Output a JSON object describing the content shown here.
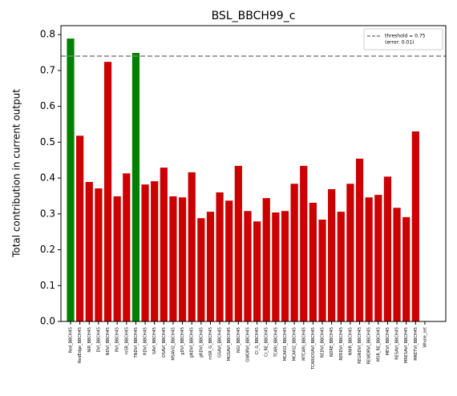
{
  "chart_data": {
    "type": "bar",
    "title": "BSL_BBCH99_c",
    "ylabel": "Total contribution in current output",
    "categories": [
      "Red_BBCH45",
      "RedEdge_BBCH45",
      "NIR_BBCH45",
      "DVI_BBCH45",
      "NDVI_BBCH45",
      "RVI_BBCH45",
      "mSR_BBCH45",
      "TNDVI_BBCH45",
      "RDVI_BBCH45",
      "SAVI_BBCH45",
      "OSAVI_BBCH45",
      "MSAVI2_BBCH45",
      "gDVI_BBCH45",
      "gNDVI_BBCH45",
      "gRDVI_BBCH45",
      "mSR_G_BBCH45",
      "GSAVI_BBCH45",
      "MGSAVI_BBCH45",
      "NGI_BBCH45",
      "GWDRVI_BBCH45",
      "CI_G_BBCH45",
      "CI_RE_BBCH45",
      "TCARI_BBCH45",
      "MCARI1_BBCH45",
      "MCARI2_BBCH45",
      "MTCARI_BBCH45",
      "TCARIOSAVI_BBCH45",
      "REDVI_BBCH45",
      "NDRE_BBCH45",
      "RERDVI_BBCH45",
      "NNIR_BBCH45",
      "REGNDVI_BBCH45",
      "REWDRVI_BBCH45",
      "MSR_RE_BBCH45",
      "MEVI_BBCH45",
      "RESAVI_BBCH45",
      "MRESAVI_BBCH45",
      "MRETVI_BBCH45",
      "Whole_set"
    ],
    "values": [
      0.789,
      0.518,
      0.389,
      0.371,
      0.724,
      0.349,
      0.413,
      0.749,
      0.382,
      0.391,
      0.429,
      0.349,
      0.346,
      0.416,
      0.288,
      0.306,
      0.36,
      0.337,
      0.434,
      0.308,
      0.279,
      0.344,
      0.304,
      0.308,
      0.384,
      0.434,
      0.331,
      0.284,
      0.369,
      0.306,
      0.384,
      0.454,
      0.346,
      0.353,
      0.404,
      0.317,
      0.291,
      0.53,
      null
    ],
    "colors": [
      "#008000",
      "#cc0000",
      "#cc0000",
      "#cc0000",
      "#cc0000",
      "#cc0000",
      "#cc0000",
      "#008000",
      "#cc0000",
      "#cc0000",
      "#cc0000",
      "#cc0000",
      "#cc0000",
      "#cc0000",
      "#cc0000",
      "#cc0000",
      "#cc0000",
      "#cc0000",
      "#cc0000",
      "#cc0000",
      "#cc0000",
      "#cc0000",
      "#cc0000",
      "#cc0000",
      "#cc0000",
      "#cc0000",
      "#cc0000",
      "#cc0000",
      "#cc0000",
      "#cc0000",
      "#cc0000",
      "#cc0000",
      "#cc0000",
      "#cc0000",
      "#cc0000",
      "#cc0000",
      "#cc0000",
      "#cc0000",
      null
    ],
    "threshold_line": 0.74,
    "threshold_color": "#808080",
    "legend": [
      "threshold = 0.75",
      "(error: 0.01)"
    ],
    "legend_position": "upper right",
    "ylim": [
      0,
      0.825
    ],
    "yticks": [
      {
        "value": 0,
        "label": "0.0"
      },
      0.1,
      0.2,
      0.3,
      0.4,
      0.5,
      0.6,
      0.7,
      0.8
    ]
  }
}
